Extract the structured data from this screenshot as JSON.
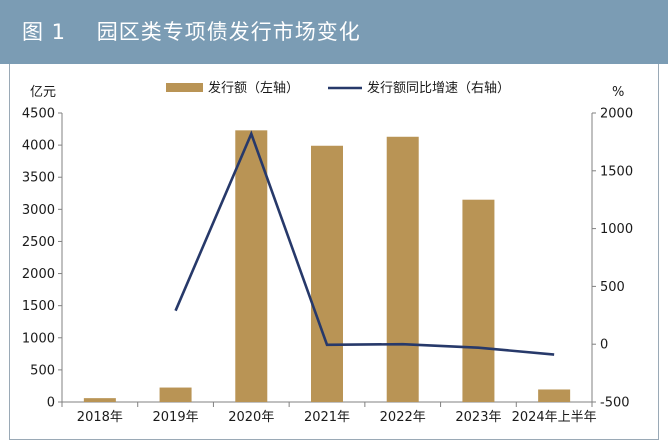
{
  "header": {
    "title": "图 1    园区类专项债发行市场变化"
  },
  "colors": {
    "header_bg": "#7b9cb4",
    "bar": "#b99455",
    "line": "#27396a"
  },
  "chart_data": {
    "type": "bar+line",
    "categories": [
      "2018年",
      "2019年",
      "2020年",
      "2021年",
      "2022年",
      "2023年",
      "2024年上半年"
    ],
    "series": [
      {
        "name": "发行额（左轴）",
        "type": "bar",
        "axis": "left",
        "values": [
          60,
          225,
          4230,
          3990,
          4130,
          3150,
          195
        ]
      },
      {
        "name": "发行额同比增速（右轴）",
        "type": "line",
        "axis": "right",
        "values": [
          null,
          290,
          1820,
          -5,
          0,
          -30,
          -90
        ]
      }
    ],
    "left_axis": {
      "label": "亿元",
      "min": 0,
      "max": 4500,
      "ticks": [
        "0",
        "500",
        "1000",
        "1500",
        "2000",
        "2500",
        "3000",
        "3500",
        "4000",
        "4500"
      ]
    },
    "right_axis": {
      "label": "%",
      "min": -500,
      "max": 2000,
      "ticks": [
        "-500",
        "0",
        "500",
        "1000",
        "1500",
        "2000"
      ]
    },
    "legend": {
      "position": "top"
    }
  }
}
